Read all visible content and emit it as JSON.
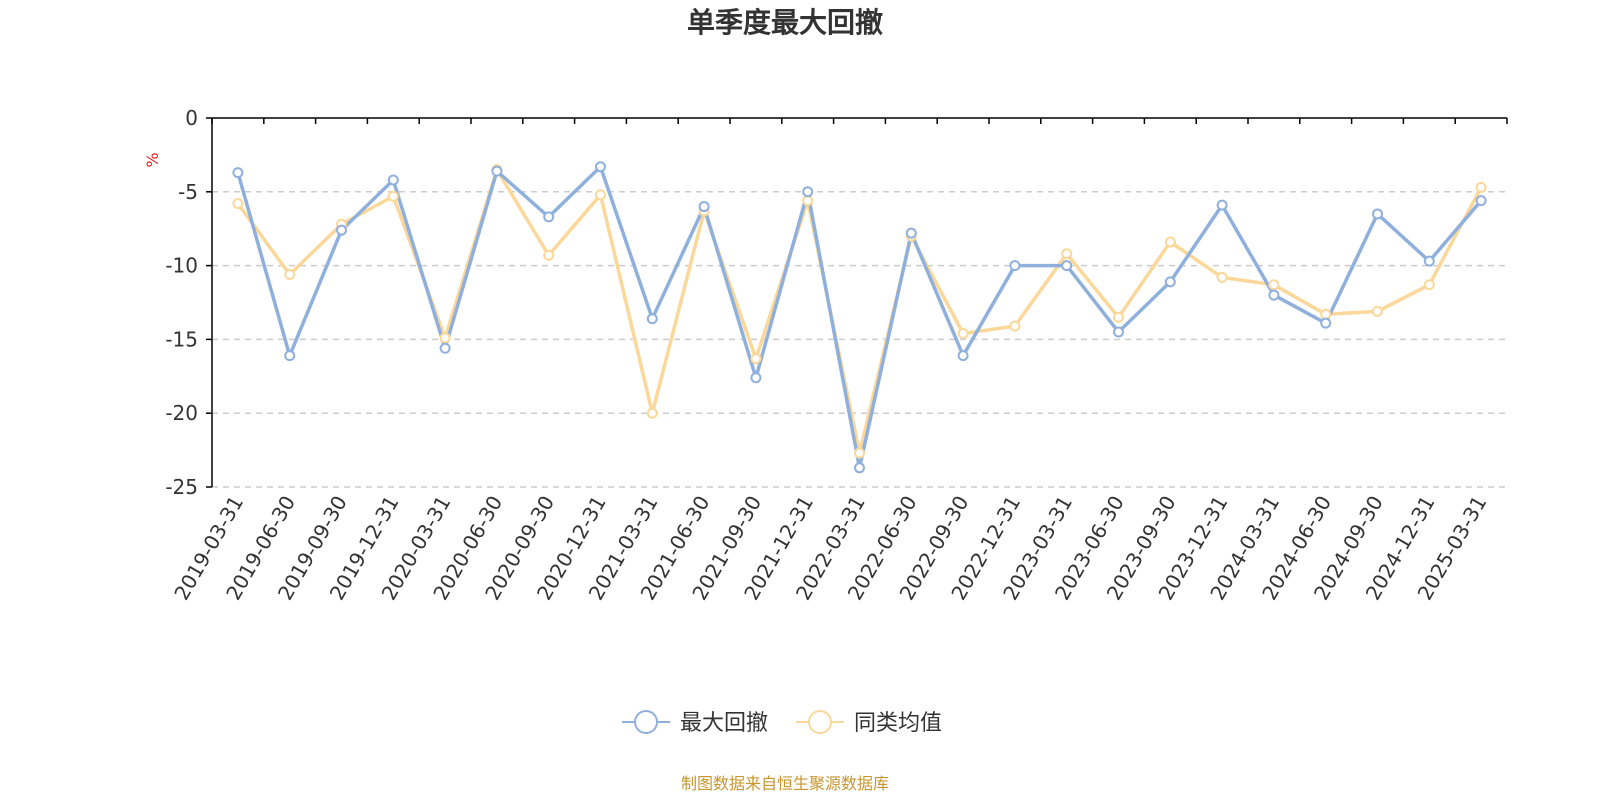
{
  "chart_data": {
    "type": "line",
    "title": "单季度最大回撤",
    "y_unit": "%",
    "ylim": [
      -25,
      0
    ],
    "y_ticks": [
      0,
      -5,
      -10,
      -15,
      -20,
      -25
    ],
    "grid": "horizontal dashed",
    "legend_position": "bottom-center",
    "x": [
      "2019-03-31",
      "2019-06-30",
      "2019-09-30",
      "2019-12-31",
      "2020-03-31",
      "2020-06-30",
      "2020-09-30",
      "2020-12-31",
      "2021-03-31",
      "2021-06-30",
      "2021-09-30",
      "2021-12-31",
      "2022-03-31",
      "2022-06-30",
      "2022-09-30",
      "2022-12-31",
      "2023-03-31",
      "2023-06-30",
      "2023-09-30",
      "2023-12-31",
      "2024-03-31",
      "2024-06-30",
      "2024-09-30",
      "2024-12-31",
      "2025-03-31"
    ],
    "series": [
      {
        "name": "最大回撤",
        "color": "#8fb0dc",
        "values": [
          -3.7,
          -16.1,
          -7.6,
          -4.2,
          -15.6,
          -3.6,
          -6.7,
          -3.3,
          -13.6,
          -6.0,
          -17.6,
          -5.0,
          -23.7,
          -7.8,
          -16.1,
          -10.0,
          -10.0,
          -14.5,
          -11.1,
          -5.9,
          -12.0,
          -13.9,
          -6.5,
          -9.7,
          -5.6
        ]
      },
      {
        "name": "同类均值",
        "color": "#fbd899",
        "values": [
          -5.8,
          -10.6,
          -7.2,
          -5.3,
          -14.9,
          -3.5,
          -9.3,
          -5.2,
          -20.0,
          -6.3,
          -16.3,
          -5.6,
          -22.7,
          -8.0,
          -14.6,
          -14.1,
          -9.2,
          -13.5,
          -8.4,
          -10.8,
          -11.3,
          -13.3,
          -13.1,
          -11.3,
          -4.7
        ]
      }
    ]
  },
  "source_note": "制图数据来自恒生聚源数据库",
  "colors": {
    "axis": "#000000",
    "grid": "#cccccc",
    "unit": "#e02020",
    "source": "#c9962e"
  }
}
